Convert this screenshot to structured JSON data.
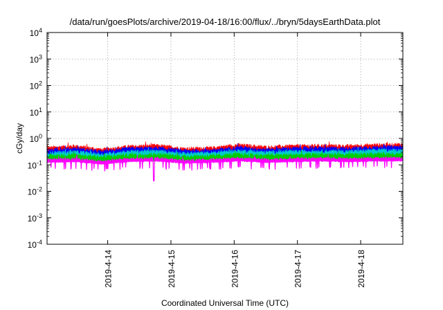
{
  "chart_data": {
    "type": "area",
    "title": "/data/run/goesPlots/archive/2019-04-18/16:00/flux/../bryn/5daysEarthData.plot",
    "xlabel": "Coordinated Universal Time (UTC)",
    "ylabel": "cGy/day",
    "y_scale": "log",
    "ylim": [
      0.0001,
      10000
    ],
    "y_ticks": [
      {
        "value": 0.0001,
        "base": "10",
        "exp": "-4"
      },
      {
        "value": 0.001,
        "base": "10",
        "exp": "-3"
      },
      {
        "value": 0.01,
        "base": "10",
        "exp": "-2"
      },
      {
        "value": 0.1,
        "base": "10",
        "exp": "-1"
      },
      {
        "value": 1,
        "base": "10",
        "exp": "0"
      },
      {
        "value": 10,
        "base": "10",
        "exp": "1"
      },
      {
        "value": 100,
        "base": "10",
        "exp": "2"
      },
      {
        "value": 1000,
        "base": "10",
        "exp": "3"
      },
      {
        "value": 10000,
        "base": "10",
        "exp": "4"
      }
    ],
    "xlim": [
      "2019-04-13T01:00",
      "2019-04-18T16:00"
    ],
    "x_ticks": [
      "2019-4-14",
      "2019-4-15",
      "2019-4-16",
      "2019-4-17",
      "2019-4-18"
    ],
    "grid": true,
    "legend": "none",
    "series": [
      {
        "color": "#ff0000",
        "values": [
          0.42,
          0.5,
          0.36,
          0.48,
          0.52,
          0.4,
          0.42,
          0.55,
          0.45,
          0.5,
          0.52,
          0.5,
          0.55,
          0.58
        ]
      },
      {
        "color": "#0000ff",
        "values": [
          0.34,
          0.4,
          0.3,
          0.4,
          0.42,
          0.33,
          0.34,
          0.44,
          0.37,
          0.41,
          0.42,
          0.41,
          0.45,
          0.47
        ]
      },
      {
        "color": "#00cccc",
        "values": [
          0.27,
          0.3,
          0.24,
          0.31,
          0.32,
          0.26,
          0.27,
          0.33,
          0.29,
          0.31,
          0.32,
          0.31,
          0.34,
          0.35
        ]
      },
      {
        "color": "#00cc00",
        "values": [
          0.21,
          0.23,
          0.19,
          0.23,
          0.24,
          0.2,
          0.21,
          0.24,
          0.22,
          0.23,
          0.24,
          0.23,
          0.25,
          0.25
        ]
      },
      {
        "color": "#ff00ff",
        "values": [
          0.15,
          0.16,
          0.13,
          0.16,
          0.17,
          0.14,
          0.15,
          0.17,
          0.15,
          0.16,
          0.17,
          0.16,
          0.17,
          0.17
        ],
        "min_spike": 0.025
      }
    ]
  }
}
